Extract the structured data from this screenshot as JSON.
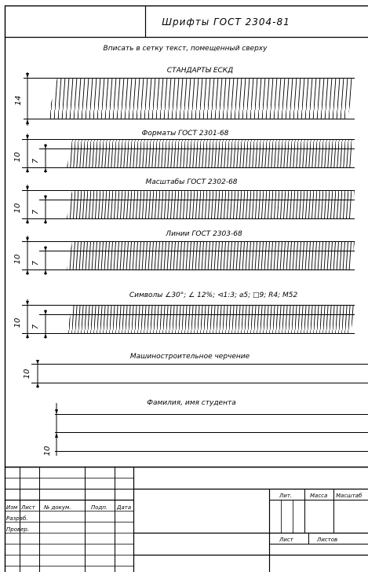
{
  "header": {
    "title": "Шрифты ГОСТ 2304-81",
    "instruction": "Вписать в сетку текст, помещенный сверху"
  },
  "sections": [
    {
      "id": "s1",
      "text": "СТАНДАРТЫ ЕСКД",
      "dims": [
        "14"
      ]
    },
    {
      "id": "s2",
      "text": "Форматы ГОСТ 2301-68",
      "dims": [
        "10",
        "7"
      ]
    },
    {
      "id": "s3",
      "text": "Масштабы ГОСТ 2302-68",
      "dims": [
        "10",
        "7"
      ]
    },
    {
      "id": "s4",
      "text": "Линии ГОСТ 2303-68",
      "dims": [
        "10",
        "7"
      ]
    },
    {
      "id": "s5",
      "text": "Символы ∠30°; ∠ 12%; ⊲1:3; ⌀5; □9; R4; М52",
      "dims": [
        "10",
        "7"
      ]
    },
    {
      "id": "s6",
      "text": "Машиностроительное черчение",
      "dims": [
        "10"
      ]
    },
    {
      "id": "s7",
      "text": "Фамилия, имя студента",
      "dims": [
        "10"
      ]
    }
  ],
  "stamp": {
    "col_headers": [
      "Изм",
      "Лист",
      "№ докум.",
      "Подп.",
      "Дата"
    ],
    "rows": [
      "Разраб.",
      "Провер."
    ],
    "lit": "Лит.",
    "mass": "Масса",
    "scale": "Масштаб",
    "sheet": "Лист",
    "sheets": "Листов"
  }
}
